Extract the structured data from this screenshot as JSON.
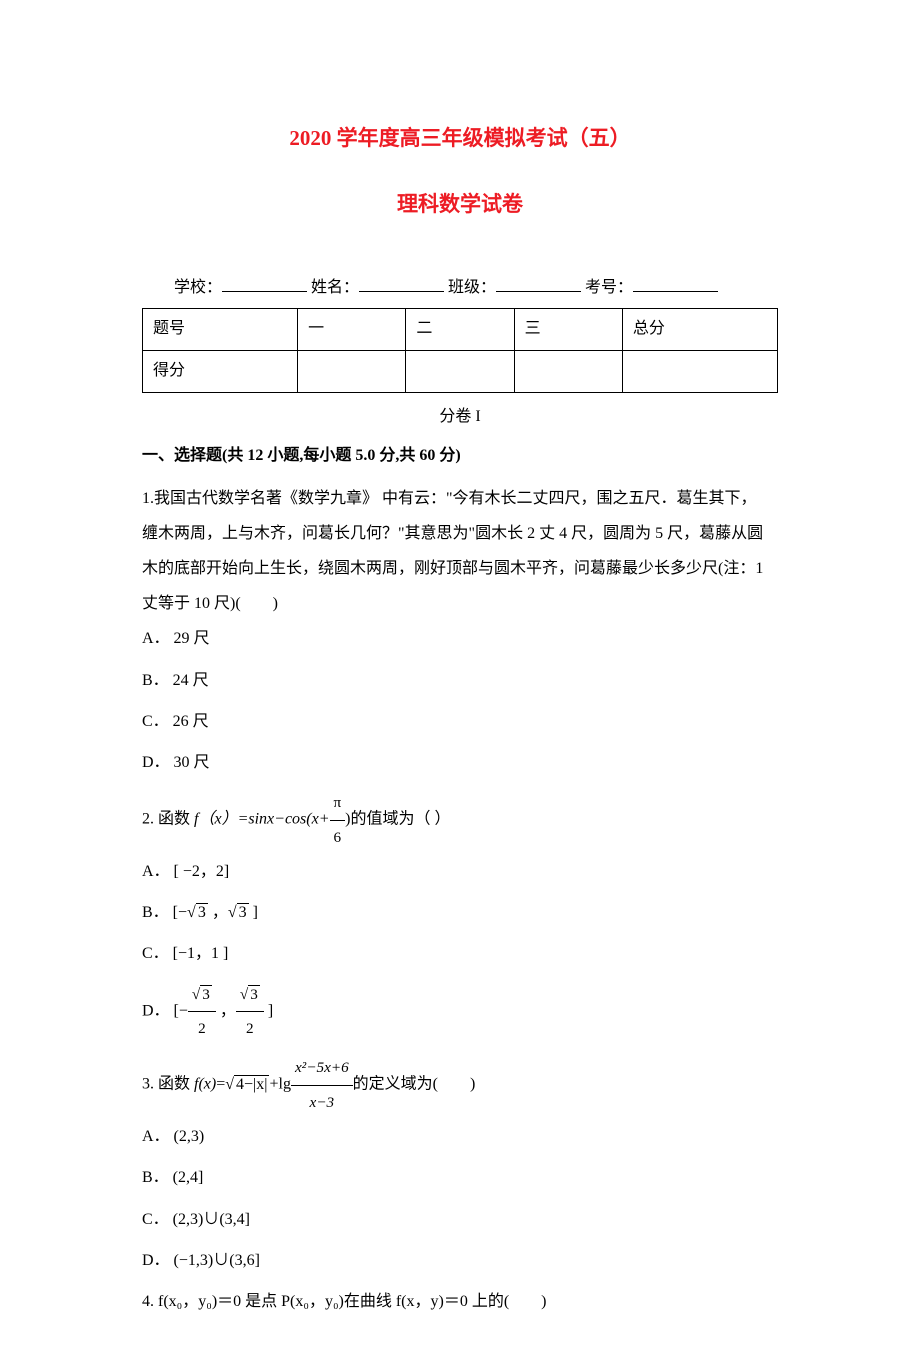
{
  "title_main": "2020 学年度高三年级模拟考试（五）",
  "title_sub": "理科数学试卷",
  "info_labels": {
    "school": "学校：",
    "name": "姓名：",
    "class": "班级：",
    "exam_no": "考号："
  },
  "score_table": {
    "row1": [
      "题号",
      "一",
      "二",
      "三",
      "总分"
    ],
    "row2_label": "得分"
  },
  "paper_section": "分卷 I",
  "section_heading": "一、选择题(共 12 小题,每小题 5.0 分,共 60 分)",
  "q1": {
    "prefix": "1.",
    "text_line1": "我国古代数学名著《数学九章》   中有云：\"今有木长二丈四尺，围之五尺．葛生其下，",
    "text_line2": "缠木两周，上与木齐，问葛长几何？\"其意思为\"圆木长 2 丈 4 尺，圆周为 5 尺，葛藤从圆",
    "text_line3": "木的底部开始向上生长，绕圆木两周，刚好顶部与圆木平齐，问葛藤最少长多少尺(注：1",
    "text_line4": "丈等于 10 尺)(　　)",
    "options": {
      "A": "A．   29 尺",
      "B": "B．   24 尺",
      "C": "C．   26 尺",
      "D": "D．   30 尺"
    }
  },
  "q2": {
    "prefix": "2. 函数 ",
    "func_part1": "f（x）=",
    "func_part2": "sinx−cos(x+",
    "func_part3": ")的值域为（ ）",
    "frac_num": "π",
    "frac_den": "6",
    "options": {
      "A": "A．   [ −2，2]",
      "B_prefix": "B．   [−",
      "B_mid": " ，",
      "B_suffix": " ]",
      "B_sqrt": "3",
      "C": "C．   [−1，1 ]",
      "D_prefix": "D．   [−",
      "D_mid": " ，",
      "D_suffix": " ]",
      "D_sqrt_num": "3",
      "D_den": "2"
    }
  },
  "q3": {
    "prefix": "3. 函数 ",
    "func_var": "f(x)",
    "eq": "=",
    "sqrt_body": "4−|x|",
    "plus": "+lg",
    "frac_num": "x²−5x+6",
    "frac_den": "x−3",
    "suffix": "的定义域为(　　)",
    "options": {
      "A": "A．   (2,3)",
      "B": "B．   (2,4]",
      "C": "C．   (2,3)∪(3,4]",
      "D": "D．   (−1,3)∪(3,6]"
    }
  },
  "q4": {
    "text": "4. f(x₀，y₀)＝0 是点 P(x₀，y₀)在曲线 f(x，y)＝0 上的(　　)"
  },
  "colors": {
    "title": "#ed1c24",
    "text": "#000000",
    "background": "#ffffff"
  },
  "typography": {
    "title_fontsize": 21,
    "body_fontsize": 16,
    "font_family": "SimSun"
  }
}
